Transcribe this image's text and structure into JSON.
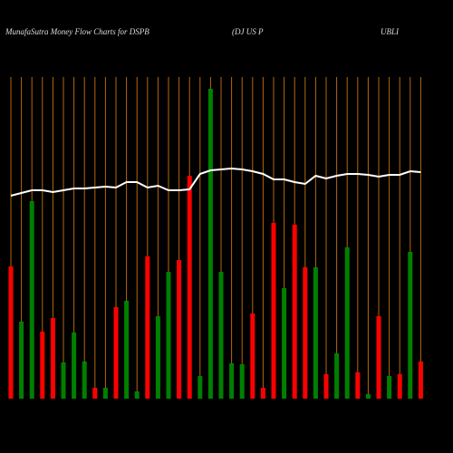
{
  "chart_data": {
    "type": "bar",
    "title": "MunafaSutra  Money Flow  Charts for DSPB",
    "subtitle": "(DJ US P",
    "subtitle2": "UBLI",
    "categories": [
      null,
      null,
      null,
      null,
      null,
      null,
      null,
      null,
      null,
      null,
      null,
      null,
      null,
      null,
      null,
      null,
      null,
      null,
      null,
      null,
      null,
      null,
      null,
      null,
      null,
      null,
      null,
      null,
      null,
      null,
      null,
      null,
      null,
      null,
      null,
      null,
      null,
      null,
      null,
      null
    ],
    "values": [
      146,
      85,
      218,
      74,
      89,
      40,
      73,
      41,
      12,
      12,
      101,
      108,
      8,
      157,
      91,
      140,
      153,
      246,
      25,
      342,
      140,
      39,
      38,
      94,
      12,
      194,
      122,
      192,
      145,
      145,
      27,
      50,
      167,
      29,
      5,
      91,
      25,
      27,
      162,
      41
    ],
    "colors": [
      "red",
      "green",
      "green",
      "red",
      "red",
      "green",
      "green",
      "green",
      "red",
      "green",
      "red",
      "green",
      "green",
      "red",
      "green",
      "green",
      "red",
      "red",
      "green",
      "green",
      "green",
      "green",
      "green",
      "red",
      "red",
      "red",
      "green",
      "red",
      "red",
      "green",
      "red",
      "green",
      "green",
      "red",
      "green",
      "red",
      "green",
      "red",
      "green",
      "red"
    ],
    "line": {
      "color": "white",
      "values": [
        224,
        227,
        230,
        230,
        228,
        230,
        232,
        232,
        233,
        234,
        233,
        239,
        239,
        233,
        235,
        230,
        230,
        231,
        248,
        252,
        253,
        254,
        253,
        251,
        248,
        242,
        242,
        239,
        237,
        246,
        243,
        246,
        248,
        248,
        247,
        245,
        247,
        247,
        251,
        250
      ]
    },
    "ylim": [
      0,
      355
    ],
    "category_line_color": "#b8660b"
  }
}
